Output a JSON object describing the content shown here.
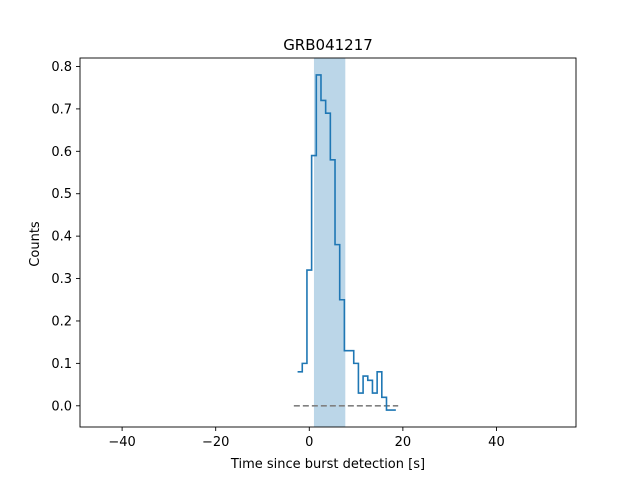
{
  "chart_data": {
    "type": "line",
    "title": "GRB041217",
    "xlabel": "Time since burst detection [s]",
    "ylabel": "Counts",
    "xlim": [
      -49,
      57
    ],
    "ylim": [
      -0.05,
      0.82
    ],
    "xticks": [
      -40,
      -20,
      0,
      20,
      40
    ],
    "xtick_labels": [
      "−40",
      "−20",
      "0",
      "20",
      "40"
    ],
    "yticks": [
      0.0,
      0.1,
      0.2,
      0.3,
      0.4,
      0.5,
      0.6,
      0.7,
      0.8
    ],
    "ytick_labels": [
      "0.0",
      "0.1",
      "0.2",
      "0.3",
      "0.4",
      "0.5",
      "0.6",
      "0.7",
      "0.8"
    ],
    "grid": false,
    "highlight_interval": {
      "x": [
        1.0,
        7.7
      ],
      "color": "#1f77b4",
      "alpha": 0.3
    },
    "baseline": {
      "y": 0.0,
      "x": [
        -3.3,
        19.0
      ],
      "style": "dashed",
      "color": "#808080"
    },
    "series": [
      {
        "style": "steps-post",
        "color": "#1f77b4",
        "x": [
          -2.5,
          -1.5,
          -0.5,
          0.5,
          1.5,
          2.5,
          3.5,
          4.5,
          5.5,
          6.5,
          7.5,
          8.5,
          9.5,
          10.5,
          11.5,
          12.5,
          13.5,
          14.5,
          15.5,
          16.5,
          17.5
        ],
        "y": [
          0.08,
          0.1,
          0.32,
          0.59,
          0.78,
          0.72,
          0.69,
          0.58,
          0.38,
          0.25,
          0.13,
          0.13,
          0.1,
          0.03,
          0.07,
          0.06,
          0.03,
          0.08,
          0.02,
          -0.01,
          -0.01
        ]
      }
    ]
  }
}
